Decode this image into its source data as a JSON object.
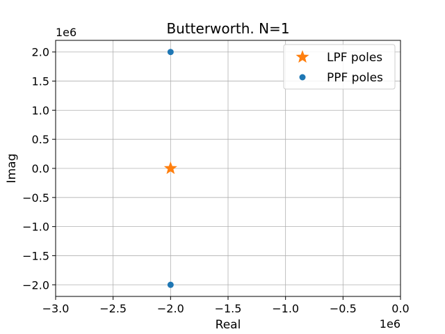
{
  "chart_data": {
    "type": "scatter",
    "title": "Butterworth. N=1",
    "xlabel": "Real",
    "ylabel": "Imag",
    "x_offset_label": "1e6",
    "y_offset_label": "1e6",
    "xlim": [
      -3.0,
      0.0
    ],
    "ylim": [
      -2.2,
      2.2
    ],
    "x_ticks": [
      -3.0,
      -2.5,
      -2.0,
      -1.5,
      -1.0,
      -0.5,
      0.0
    ],
    "x_tick_labels": [
      "−3.0",
      "−2.5",
      "−2.0",
      "−1.5",
      "−1.0",
      "−0.5",
      "0.0"
    ],
    "y_ticks": [
      -2.0,
      -1.5,
      -1.0,
      -0.5,
      0.0,
      0.5,
      1.0,
      1.5,
      2.0
    ],
    "y_tick_labels": [
      "−2.0",
      "−1.5",
      "−1.0",
      "−0.5",
      "0.0",
      "0.5",
      "1.0",
      "1.5",
      "2.0"
    ],
    "grid": true,
    "legend_position": "top-right",
    "series": [
      {
        "name": "LPF poles",
        "marker": "star",
        "color": "#ff7f0e",
        "points": [
          [
            -2.0,
            0.0
          ]
        ]
      },
      {
        "name": "PPF poles",
        "marker": "circle",
        "color": "#1f77b4",
        "points": [
          [
            -2.0,
            2.0
          ],
          [
            -2.0,
            -2.0
          ]
        ]
      }
    ]
  }
}
